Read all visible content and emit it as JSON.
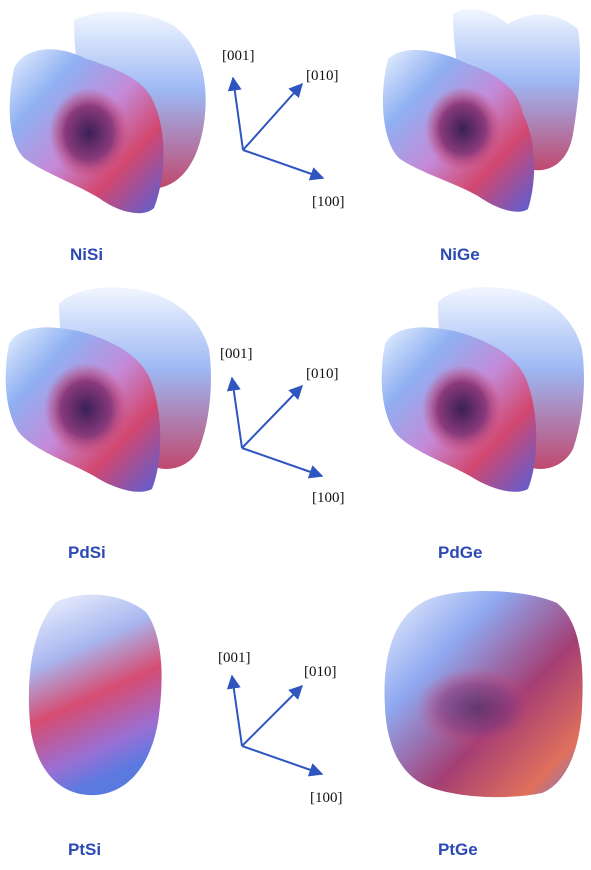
{
  "colors": {
    "label": "#2c49b4",
    "axis": "#2f55c0",
    "surface_light": "#e9f2ff",
    "surface_cool": "#7fa2ee",
    "surface_mid": "#c48ad8",
    "surface_warm": "#d2476f",
    "surface_deep": "#4a2a6a"
  },
  "axes": {
    "c": "[001]",
    "b": "[010]",
    "a": "[100]"
  },
  "panels": [
    {
      "label": "NiSi"
    },
    {
      "label": "NiGe"
    },
    {
      "label": "PdSi"
    },
    {
      "label": "PdGe"
    },
    {
      "label": "PtSi"
    },
    {
      "label": "PtGe"
    }
  ]
}
